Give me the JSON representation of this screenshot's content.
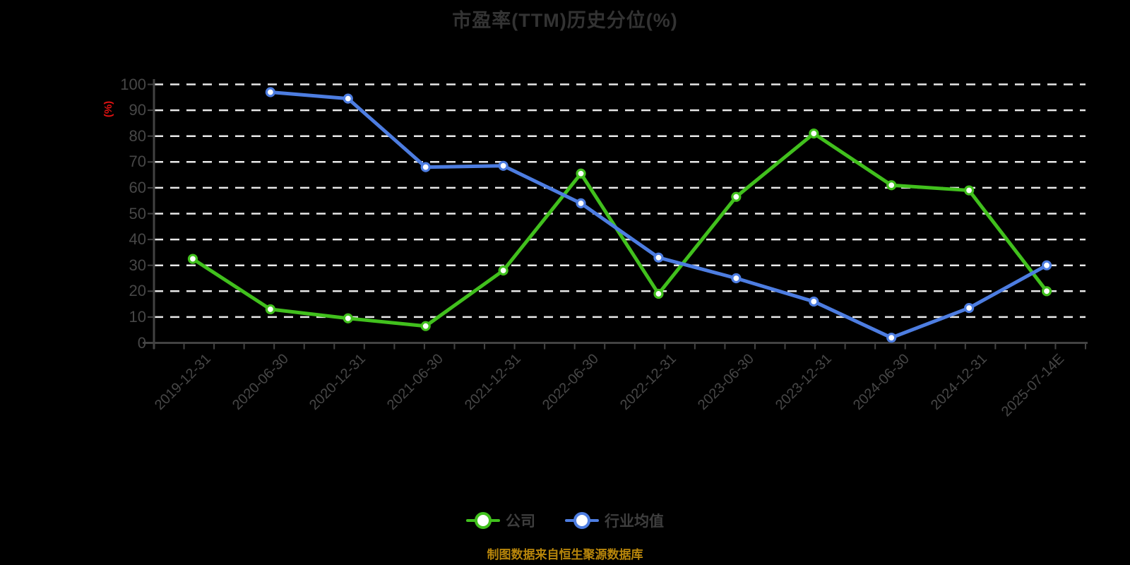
{
  "chart": {
    "title": "市盈率(TTM)历史分位(%)",
    "y_axis_name": "(%)",
    "source_note": "制图数据来自恒生聚源数据库"
  },
  "legend": {
    "items": [
      {
        "label": "公司",
        "color": "#41c01d"
      },
      {
        "label": "行业均值",
        "color": "#4d7de1"
      }
    ]
  },
  "chart_data": {
    "type": "line",
    "title": "市盈率(TTM)历史分位(%)",
    "xlabel": "",
    "ylabel": "(%)",
    "ylim": [
      0,
      100
    ],
    "y_ticks": [
      0,
      10,
      20,
      30,
      40,
      50,
      60,
      70,
      80,
      90,
      100
    ],
    "grid": "horizontal dashed white lines on black background",
    "legend_position": "bottom",
    "categories": [
      "2019-12-31",
      "2020-06-30",
      "2020-12-31",
      "2021-06-30",
      "2021-12-31",
      "2022-06-30",
      "2022-12-31",
      "2023-06-30",
      "2023-12-31",
      "2024-06-30",
      "2024-12-31",
      "2025-07-14E"
    ],
    "series": [
      {
        "name": "公司",
        "color": "#41c01d",
        "marker": "circle-white-fill",
        "values": [
          32.5,
          13,
          9.5,
          6.5,
          28,
          65.5,
          19,
          56.5,
          81,
          61,
          59,
          20
        ]
      },
      {
        "name": "行业均值",
        "color": "#4d7de1",
        "marker": "circle-white-fill",
        "values": [
          null,
          97,
          94.5,
          68,
          68.5,
          54,
          33,
          25,
          16,
          2,
          13.5,
          30
        ]
      }
    ]
  },
  "colors": {
    "background": "#000000",
    "title_text": "#333333",
    "axis_line": "#424242",
    "axis_label_text": "#474747",
    "gridline": "#e8e8e8",
    "y_axis_name_red": "#e01212",
    "series_company_green": "#41c01d",
    "series_industry_blue": "#4d7de1",
    "source_note_orange": "#b8860b"
  }
}
